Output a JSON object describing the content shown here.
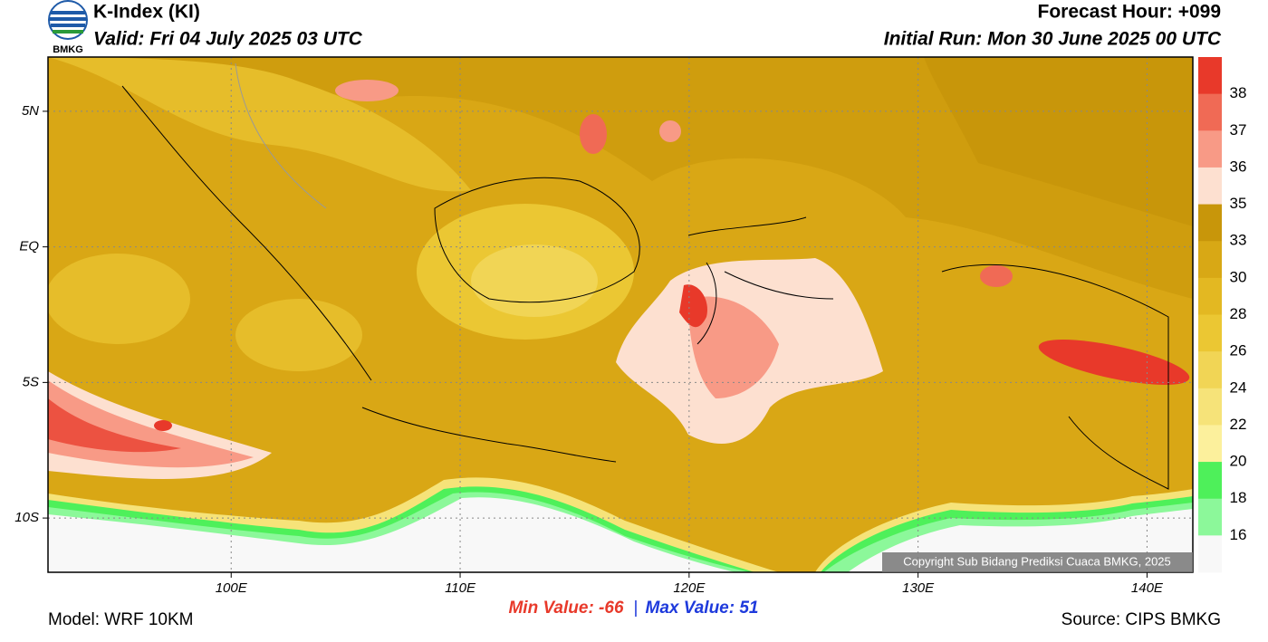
{
  "header": {
    "title": "K-Index (KI)",
    "valid": "Valid: Fri 04 July 2025 03 UTC",
    "forecast_hour": "Forecast Hour: +099",
    "initial_run": "Initial Run: Mon 30 June 2025 00 UTC",
    "logo_text": "BMKG"
  },
  "map": {
    "xlim": [
      92,
      142
    ],
    "ylim": [
      -12,
      7
    ],
    "xticks": [
      {
        "value": 100,
        "label": "100E"
      },
      {
        "value": 110,
        "label": "110E"
      },
      {
        "value": 120,
        "label": "120E"
      },
      {
        "value": 130,
        "label": "130E"
      },
      {
        "value": 140,
        "label": "140E"
      }
    ],
    "yticks": [
      {
        "value": 5,
        "label": "5N"
      },
      {
        "value": 0,
        "label": "EQ"
      },
      {
        "value": -5,
        "label": "5S"
      },
      {
        "value": -10,
        "label": "10S"
      }
    ],
    "grid": true,
    "copyright": "Copyright Sub Bidang Prediksi Cuaca BMKG, 2025"
  },
  "colorbar": {
    "levels": [
      38,
      37,
      36,
      35,
      33,
      30,
      28,
      26,
      24,
      22,
      20,
      18,
      16
    ],
    "colors": [
      "#e8392a",
      "#f06a55",
      "#f89a86",
      "#fde0d0",
      "#c8960a",
      "#d8a815",
      "#e3b822",
      "#ebc733",
      "#f1d555",
      "#f6e379",
      "#fcf09c",
      "#4ef05a",
      "#8cf89a",
      "#f8f8f8"
    ]
  },
  "footer": {
    "min_value": "Min Value: -66",
    "separator": "|",
    "max_value": "Max Value:  51",
    "model": "Model: WRF 10KM",
    "source": "Source: CIPS BMKG"
  }
}
